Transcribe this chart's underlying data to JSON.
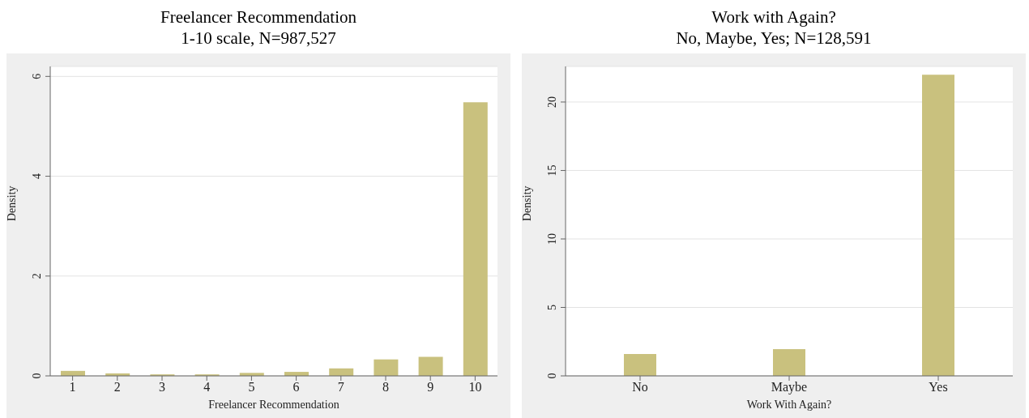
{
  "chart_data": [
    {
      "type": "bar",
      "title": "Freelancer Recommendation",
      "subtitle": "1-10 scale, N=987,527",
      "xlabel": "Freelancer Recommendation",
      "ylabel": "Density",
      "categories": [
        "1",
        "2",
        "3",
        "4",
        "5",
        "6",
        "7",
        "8",
        "9",
        "10"
      ],
      "values": [
        0.1,
        0.05,
        0.03,
        0.03,
        0.06,
        0.08,
        0.15,
        0.33,
        0.38,
        5.48
      ],
      "color": "#c9c17e",
      "ylim": [
        0,
        6.2
      ],
      "yticks": [
        0,
        2,
        4,
        6
      ],
      "grid": "y",
      "legend": false
    },
    {
      "type": "bar",
      "title": "Work with Again?",
      "subtitle": "No, Maybe, Yes; N=128,591",
      "xlabel": "Work With Again?",
      "ylabel": "Density",
      "categories": [
        "No",
        "Maybe",
        "Yes"
      ],
      "values": [
        1.6,
        1.95,
        22.0
      ],
      "color": "#c9c17e",
      "ylim": [
        0,
        22.6
      ],
      "yticks": [
        0,
        5,
        10,
        15,
        20
      ],
      "grid": "y",
      "legend": false
    }
  ]
}
